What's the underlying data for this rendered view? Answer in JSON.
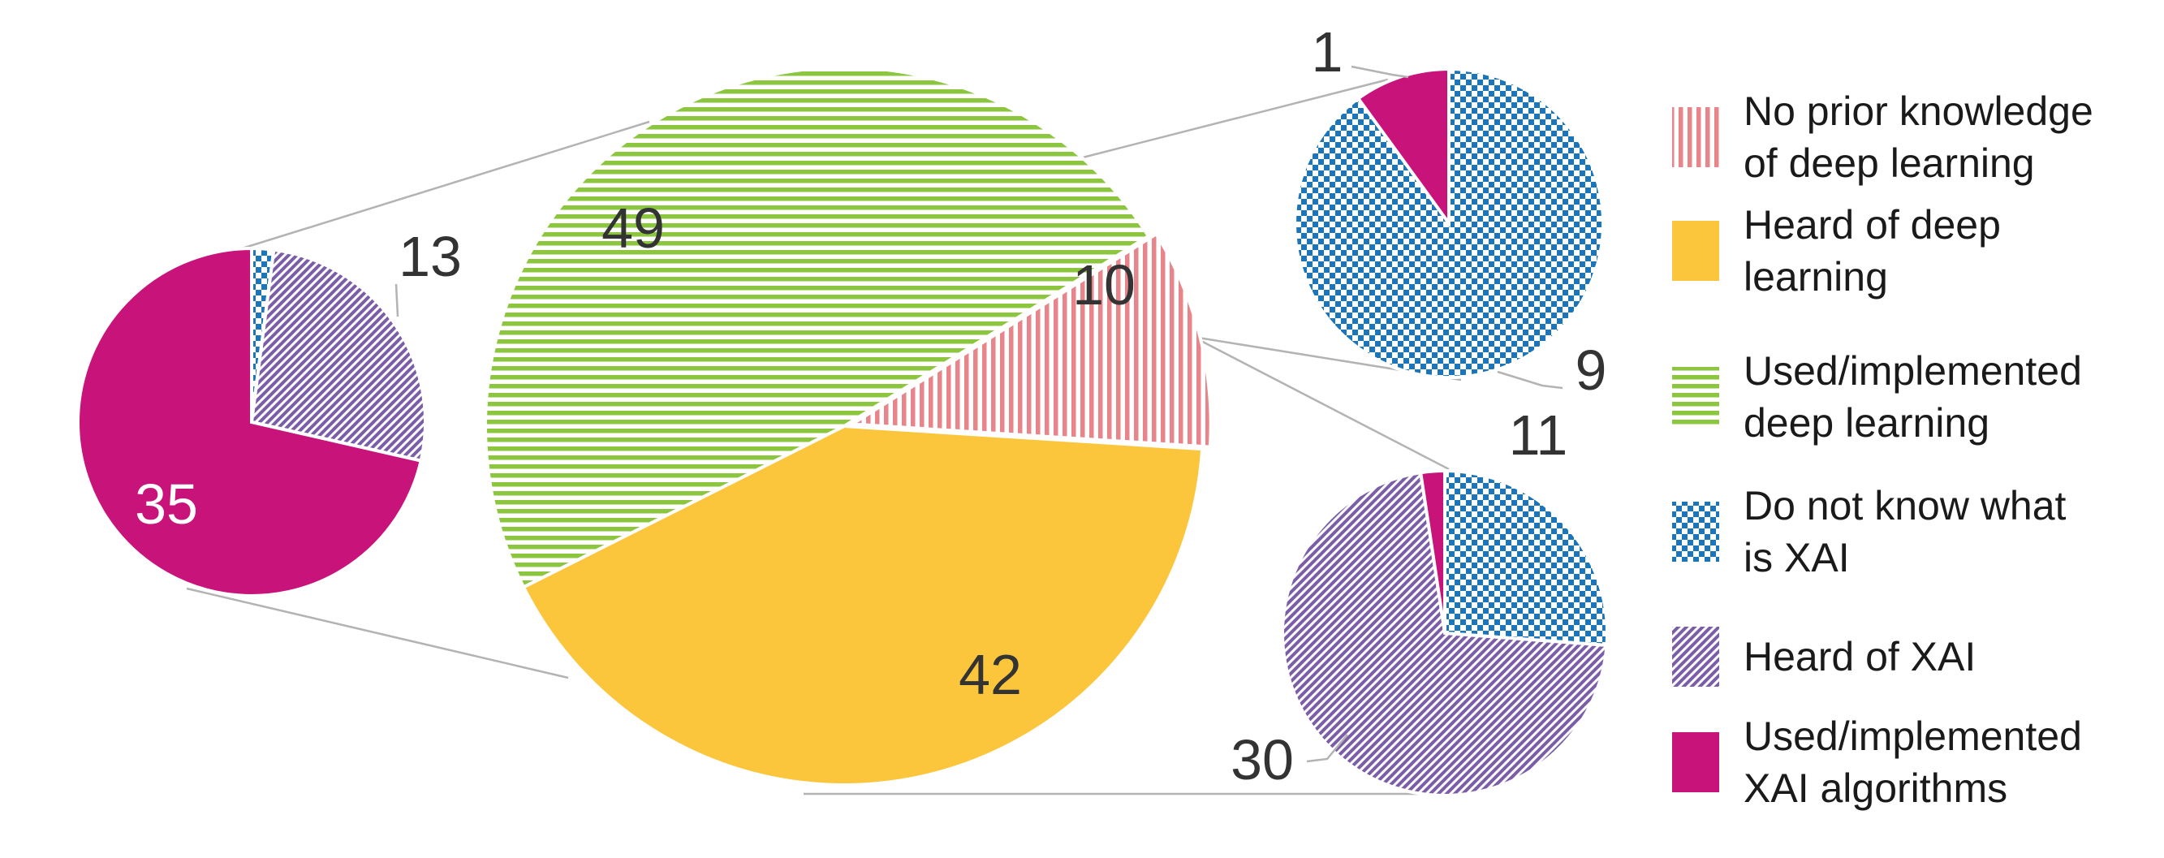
{
  "chart_data": {
    "type": "pie",
    "title": "",
    "main_pie": {
      "slices": [
        {
          "key": "no_prior",
          "label": "No prior knowledge of deep learning",
          "value": 10
        },
        {
          "key": "heard_dl",
          "label": "Heard of deep learning",
          "value": 42
        },
        {
          "key": "used_dl",
          "label": "Used/implemented deep learning",
          "value": 49
        }
      ]
    },
    "breakdowns": [
      {
        "of": "used_dl",
        "slices": [
          {
            "key": "dont_know_xai",
            "value": 1,
            "shown_label": ""
          },
          {
            "key": "heard_xai",
            "value": 13,
            "shown_label": "13"
          },
          {
            "key": "used_xai",
            "value": 35,
            "shown_label": "35"
          }
        ]
      },
      {
        "of": "no_prior",
        "slices": [
          {
            "key": "dont_know_xai",
            "value": 9,
            "shown_label": "9"
          },
          {
            "key": "used_xai",
            "value": 1,
            "shown_label": "1"
          }
        ]
      },
      {
        "of": "heard_dl",
        "slices": [
          {
            "key": "dont_know_xai",
            "value": 11,
            "shown_label": "11"
          },
          {
            "key": "heard_xai",
            "value": 30,
            "shown_label": "30"
          },
          {
            "key": "used_xai",
            "value": 1,
            "shown_label": ""
          }
        ]
      }
    ],
    "legend": {
      "placement": "right",
      "items": [
        {
          "key": "no_prior",
          "lines": [
            "No prior knowledge",
            "of deep learning"
          ]
        },
        {
          "key": "heard_dl",
          "lines": [
            "Heard of deep",
            "learning"
          ]
        },
        {
          "key": "used_dl",
          "lines": [
            "Used/implemented",
            "deep learning"
          ]
        },
        {
          "key": "dont_know_xai",
          "lines": [
            "Do not know what",
            "is XAI"
          ]
        },
        {
          "key": "heard_xai",
          "lines": [
            "Heard of XAI"
          ]
        },
        {
          "key": "used_xai",
          "lines": [
            "Used/implemented",
            "XAI algorithms"
          ]
        }
      ]
    },
    "colors": {
      "no_prior": "#e8858a",
      "heard_dl": "#fcc63c",
      "used_dl": "#8cc63f",
      "dont_know_xai": "#1b75bb",
      "heard_xai": "#7b5ea7",
      "used_xai": "#c8137a"
    }
  }
}
